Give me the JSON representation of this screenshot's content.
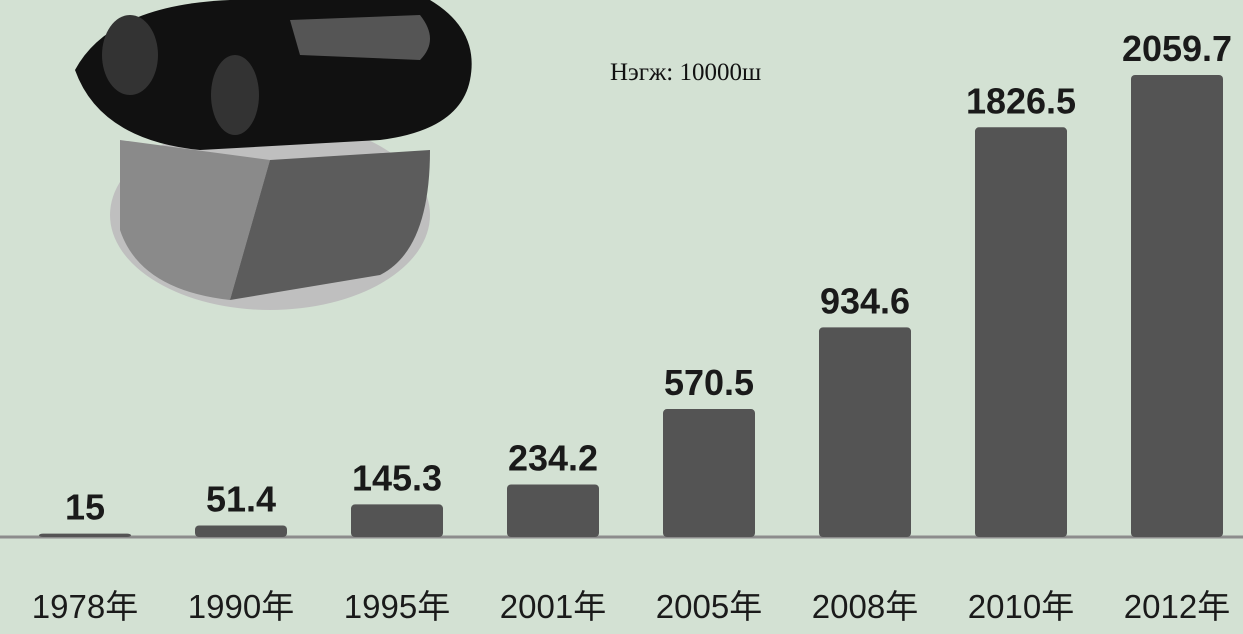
{
  "chart_data": {
    "type": "bar",
    "subtitle": "Нэгж: 10000ш",
    "categories": [
      "1978年",
      "1990年",
      "1995年",
      "2001年",
      "2005年",
      "2008年",
      "2010年",
      "2012年"
    ],
    "values": [
      15,
      51.4,
      145.3,
      234.2,
      570.5,
      934.6,
      1826.5,
      2059.7
    ],
    "color": "#545454"
  }
}
